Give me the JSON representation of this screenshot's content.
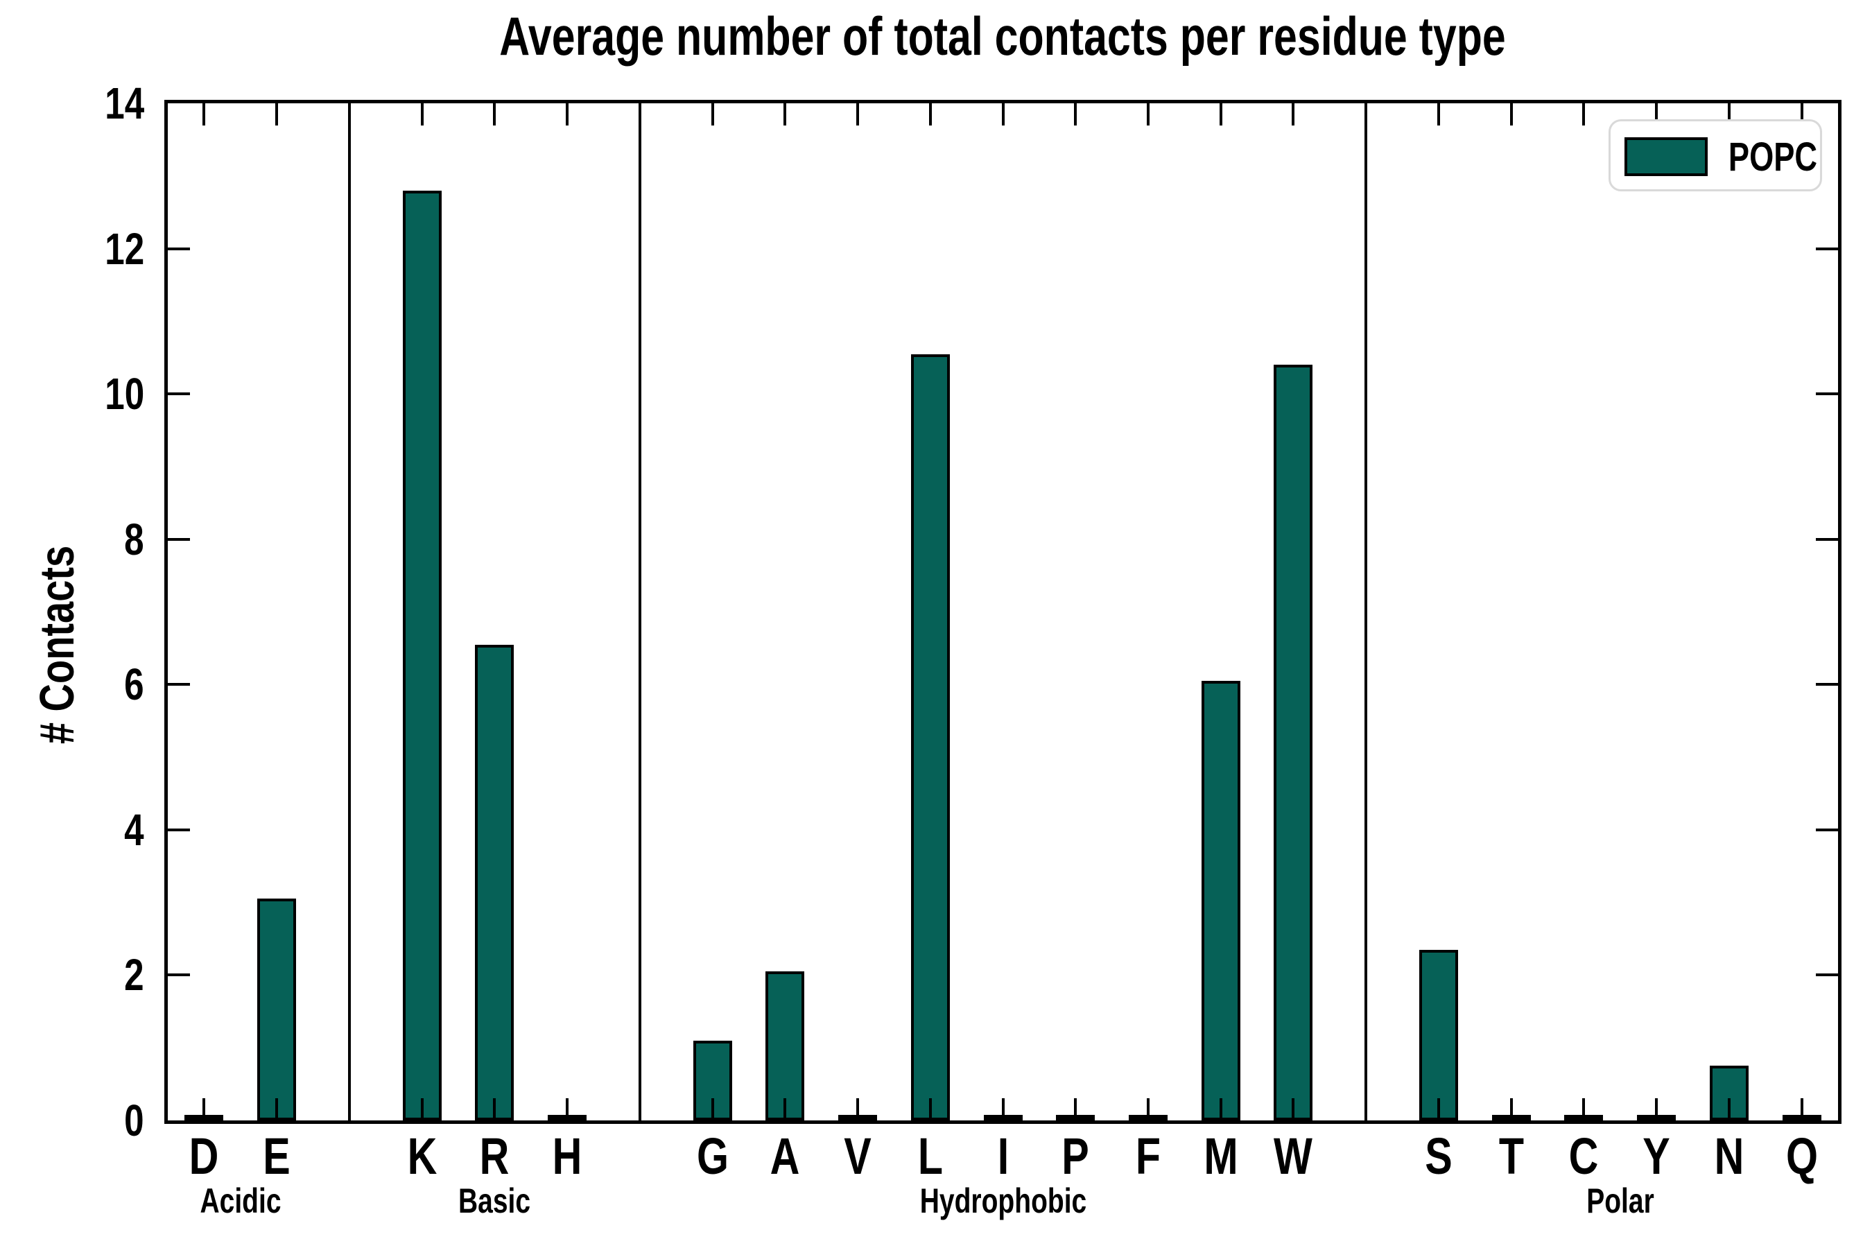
{
  "chart_data": {
    "type": "bar",
    "title": "Average number of total contacts per residue type",
    "ylabel": "# Contacts",
    "xlabel": "",
    "ylim": [
      0,
      14
    ],
    "yticks": [
      0,
      2,
      4,
      6,
      8,
      10,
      12,
      14
    ],
    "grid": false,
    "legend_position": "upper right",
    "series_name": "POPC",
    "bar_color": "#066157",
    "bar_edge_color": "#000000",
    "legend_border_color": "#d9d9d9",
    "groups": [
      {
        "name": "Acidic",
        "residues": [
          {
            "label": "D",
            "value": 0.02
          },
          {
            "label": "E",
            "value": 3.05
          }
        ]
      },
      {
        "name": "Basic",
        "residues": [
          {
            "label": "K",
            "value": 12.8
          },
          {
            "label": "R",
            "value": 6.55
          },
          {
            "label": "H",
            "value": 0.02
          }
        ]
      },
      {
        "name": "Hydrophobic",
        "residues": [
          {
            "label": "G",
            "value": 1.1
          },
          {
            "label": "A",
            "value": 2.05
          },
          {
            "label": "V",
            "value": 0.02
          },
          {
            "label": "L",
            "value": 10.55
          },
          {
            "label": "I",
            "value": 0.03
          },
          {
            "label": "P",
            "value": 0.03
          },
          {
            "label": "F",
            "value": 0.03
          },
          {
            "label": "M",
            "value": 6.05
          },
          {
            "label": "W",
            "value": 10.4
          }
        ]
      },
      {
        "name": "Polar",
        "residues": [
          {
            "label": "S",
            "value": 2.35
          },
          {
            "label": "T",
            "value": 0.02
          },
          {
            "label": "C",
            "value": 0.02
          },
          {
            "label": "Y",
            "value": 0.02
          },
          {
            "label": "N",
            "value": 0.75
          },
          {
            "label": "Q",
            "value": 0.02
          }
        ]
      }
    ],
    "categories": [
      "D",
      "E",
      "K",
      "R",
      "H",
      "G",
      "A",
      "V",
      "L",
      "I",
      "P",
      "F",
      "M",
      "W",
      "S",
      "T",
      "C",
      "Y",
      "N",
      "Q"
    ],
    "values": [
      0.02,
      3.05,
      12.8,
      6.55,
      0.02,
      1.1,
      2.05,
      0.02,
      10.55,
      0.03,
      0.03,
      0.03,
      6.05,
      10.4,
      2.35,
      0.02,
      0.02,
      0.02,
      0.75,
      0.02
    ]
  }
}
